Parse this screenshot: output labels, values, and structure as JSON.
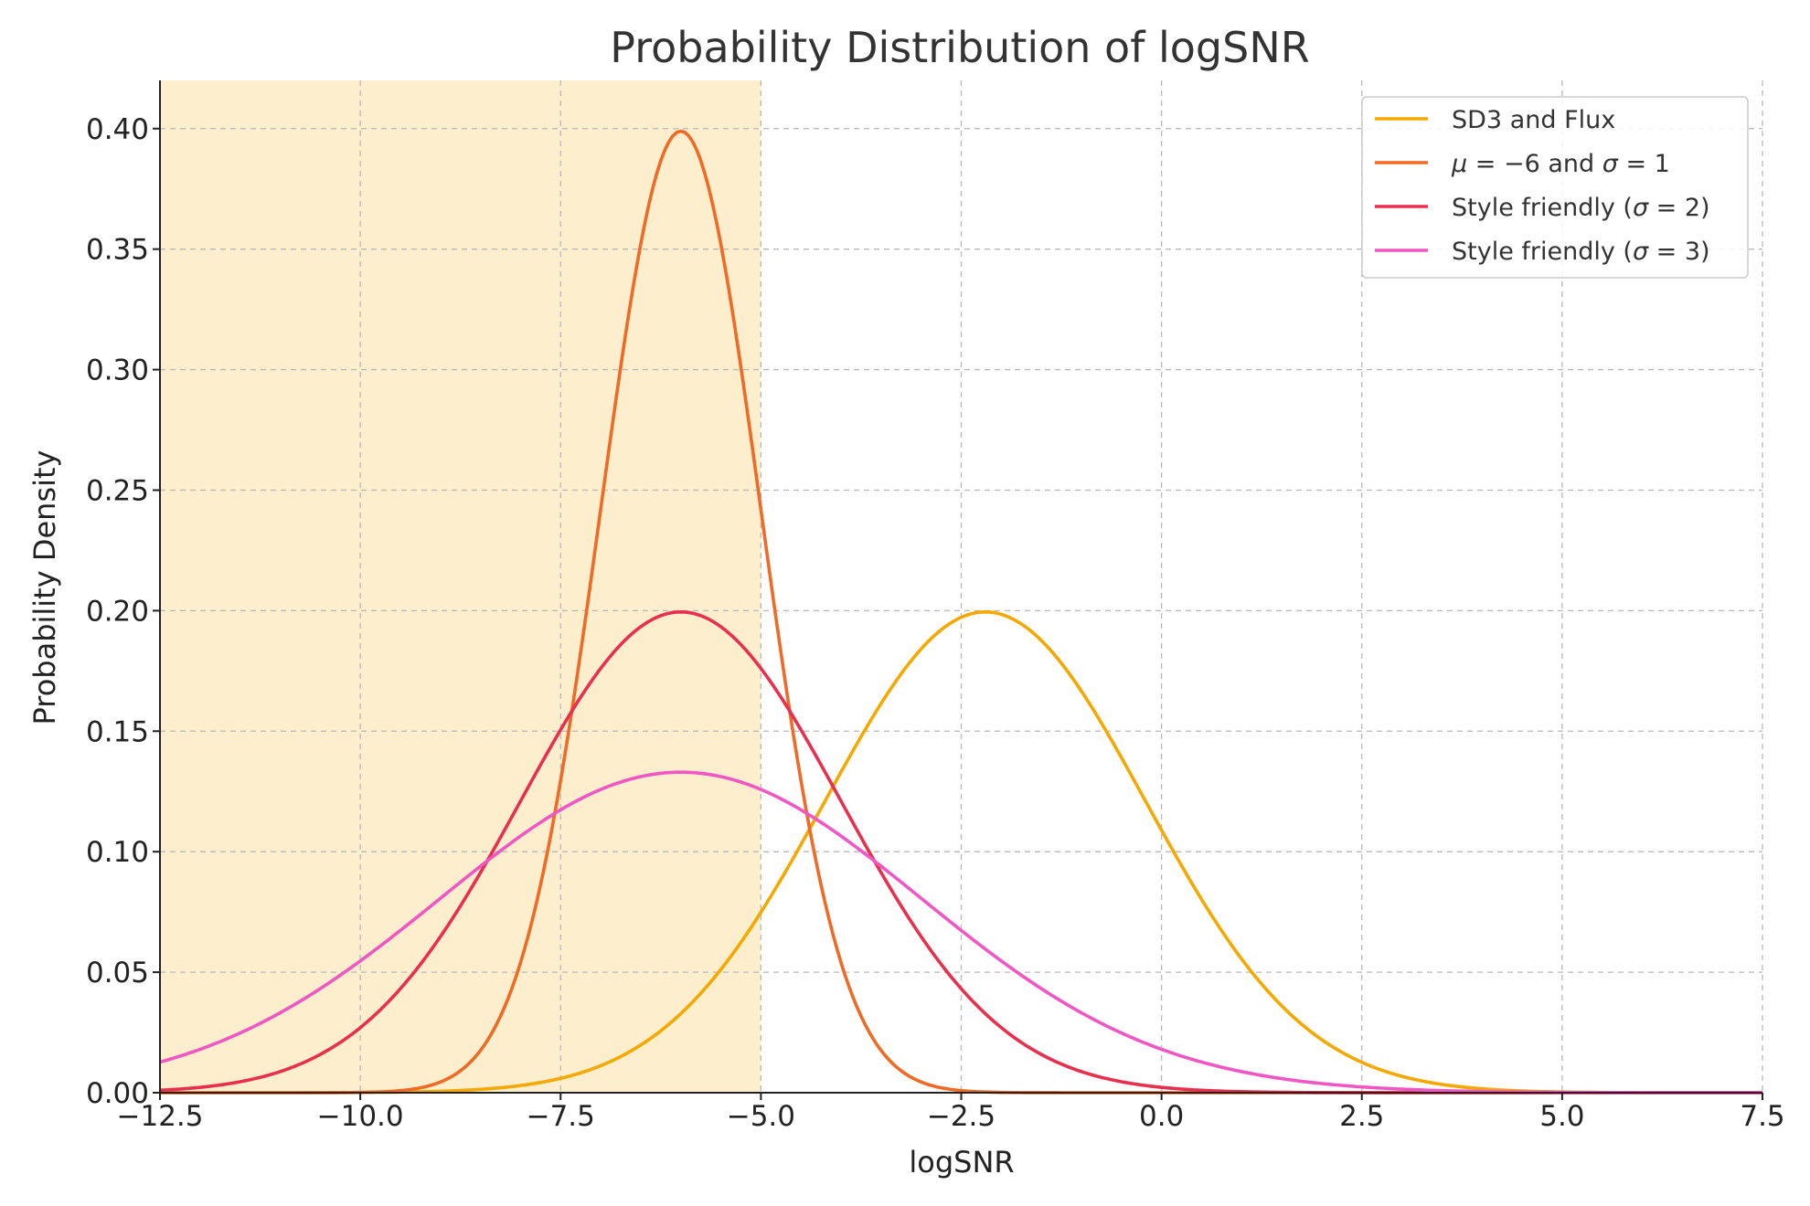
{
  "chart_data": {
    "type": "line",
    "title": "Probability Distribution of logSNR",
    "xlabel": "logSNR",
    "ylabel": "Probability Density",
    "xlim": [
      -12.5,
      7.5
    ],
    "ylim": [
      0,
      0.42
    ],
    "x_ticks": [
      -12.5,
      -10.0,
      -7.5,
      -5.0,
      -2.5,
      0.0,
      2.5,
      5.0,
      7.5
    ],
    "x_tick_labels": [
      "−12.5",
      "−10.0",
      "−7.5",
      "−5.0",
      "−2.5",
      "0.0",
      "2.5",
      "5.0",
      "7.5"
    ],
    "y_ticks": [
      0.0,
      0.05,
      0.1,
      0.15,
      0.2,
      0.25,
      0.3,
      0.35,
      0.4
    ],
    "y_tick_labels": [
      "0.00",
      "0.05",
      "0.10",
      "0.15",
      "0.20",
      "0.25",
      "0.30",
      "0.35",
      "0.40"
    ],
    "grid": true,
    "legend_position": "top-right",
    "shaded_region": {
      "x_start": -12.5,
      "x_end": -5.0,
      "color": "#fdefcd"
    },
    "series": [
      {
        "name": "SD3 and Flux",
        "legend_parts": [
          "SD3 and Flux"
        ],
        "color": "#f5a800",
        "mu": -2.2,
        "sigma": 2.0
      },
      {
        "name": "μ = −6 and σ = 1",
        "legend_parts": [
          "μ",
          " = −6 and ",
          "σ",
          " = 1"
        ],
        "color": "#f06a25",
        "mu": -6.0,
        "sigma": 1.0
      },
      {
        "name": "Style friendly (σ = 2)",
        "legend_parts": [
          "Style friendly (",
          "σ",
          " = 2)"
        ],
        "color": "#e8304e",
        "mu": -6.0,
        "sigma": 2.0
      },
      {
        "name": "Style friendly (σ = 3)",
        "legend_parts": [
          "Style friendly (",
          "σ",
          " = 3)"
        ],
        "color": "#f057c4",
        "mu": -6.0,
        "sigma": 3.0
      }
    ]
  }
}
